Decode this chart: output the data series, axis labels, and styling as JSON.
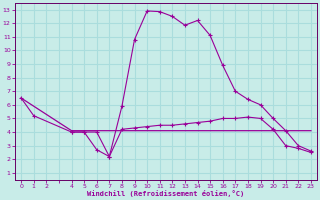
{
  "bg_color": "#c8ece8",
  "line_color": "#990099",
  "grid_color": "#aadddd",
  "spine_color": "#660066",
  "xlim": [
    -0.5,
    23.5
  ],
  "ylim": [
    0.5,
    13.5
  ],
  "xtick_labels": [
    "0",
    "1",
    "2",
    "",
    "4",
    "5",
    "6",
    "7",
    "8",
    "9",
    "10",
    "11",
    "12",
    "13",
    "14",
    "15",
    "16",
    "17",
    "18",
    "19",
    "20",
    "21",
    "22",
    "23"
  ],
  "xtick_positions": [
    0,
    1,
    2,
    3,
    4,
    5,
    6,
    7,
    8,
    9,
    10,
    11,
    12,
    13,
    14,
    15,
    16,
    17,
    18,
    19,
    20,
    21,
    22,
    23
  ],
  "ytick_positions": [
    1,
    2,
    3,
    4,
    5,
    6,
    7,
    8,
    9,
    10,
    11,
    12,
    13
  ],
  "xlabel": "Windchill (Refroidissement éolien,°C)",
  "line1_x": [
    0,
    1,
    4,
    5,
    6,
    7,
    8,
    9,
    10,
    11,
    12,
    13,
    14,
    15,
    16,
    17,
    18,
    19,
    20,
    21,
    22,
    23
  ],
  "line1_y": [
    6.5,
    5.2,
    4.0,
    4.0,
    2.7,
    2.2,
    5.9,
    10.8,
    12.9,
    12.85,
    12.5,
    11.85,
    12.2,
    11.1,
    8.9,
    7.0,
    6.4,
    6.0,
    5.0,
    4.1,
    3.0,
    2.6
  ],
  "line2_x": [
    4,
    5,
    6,
    7,
    8,
    9,
    10,
    11,
    12,
    13,
    14,
    15,
    16,
    17,
    18,
    19,
    20,
    21,
    22,
    23
  ],
  "line2_y": [
    4.0,
    4.0,
    4.0,
    2.2,
    4.2,
    4.3,
    4.4,
    4.5,
    4.5,
    4.6,
    4.7,
    4.8,
    5.0,
    5.0,
    5.1,
    5.0,
    4.2,
    3.0,
    2.8,
    2.5
  ],
  "line3_x": [
    0,
    4,
    5,
    6,
    7,
    8,
    9,
    10,
    11,
    12,
    13,
    14,
    15,
    16,
    17,
    18,
    19,
    20,
    21,
    22,
    23
  ],
  "line3_y": [
    6.5,
    4.1,
    4.1,
    4.1,
    4.1,
    4.1,
    4.1,
    4.1,
    4.1,
    4.1,
    4.1,
    4.1,
    4.1,
    4.1,
    4.1,
    4.1,
    4.1,
    4.1,
    4.1,
    4.1,
    4.1
  ]
}
